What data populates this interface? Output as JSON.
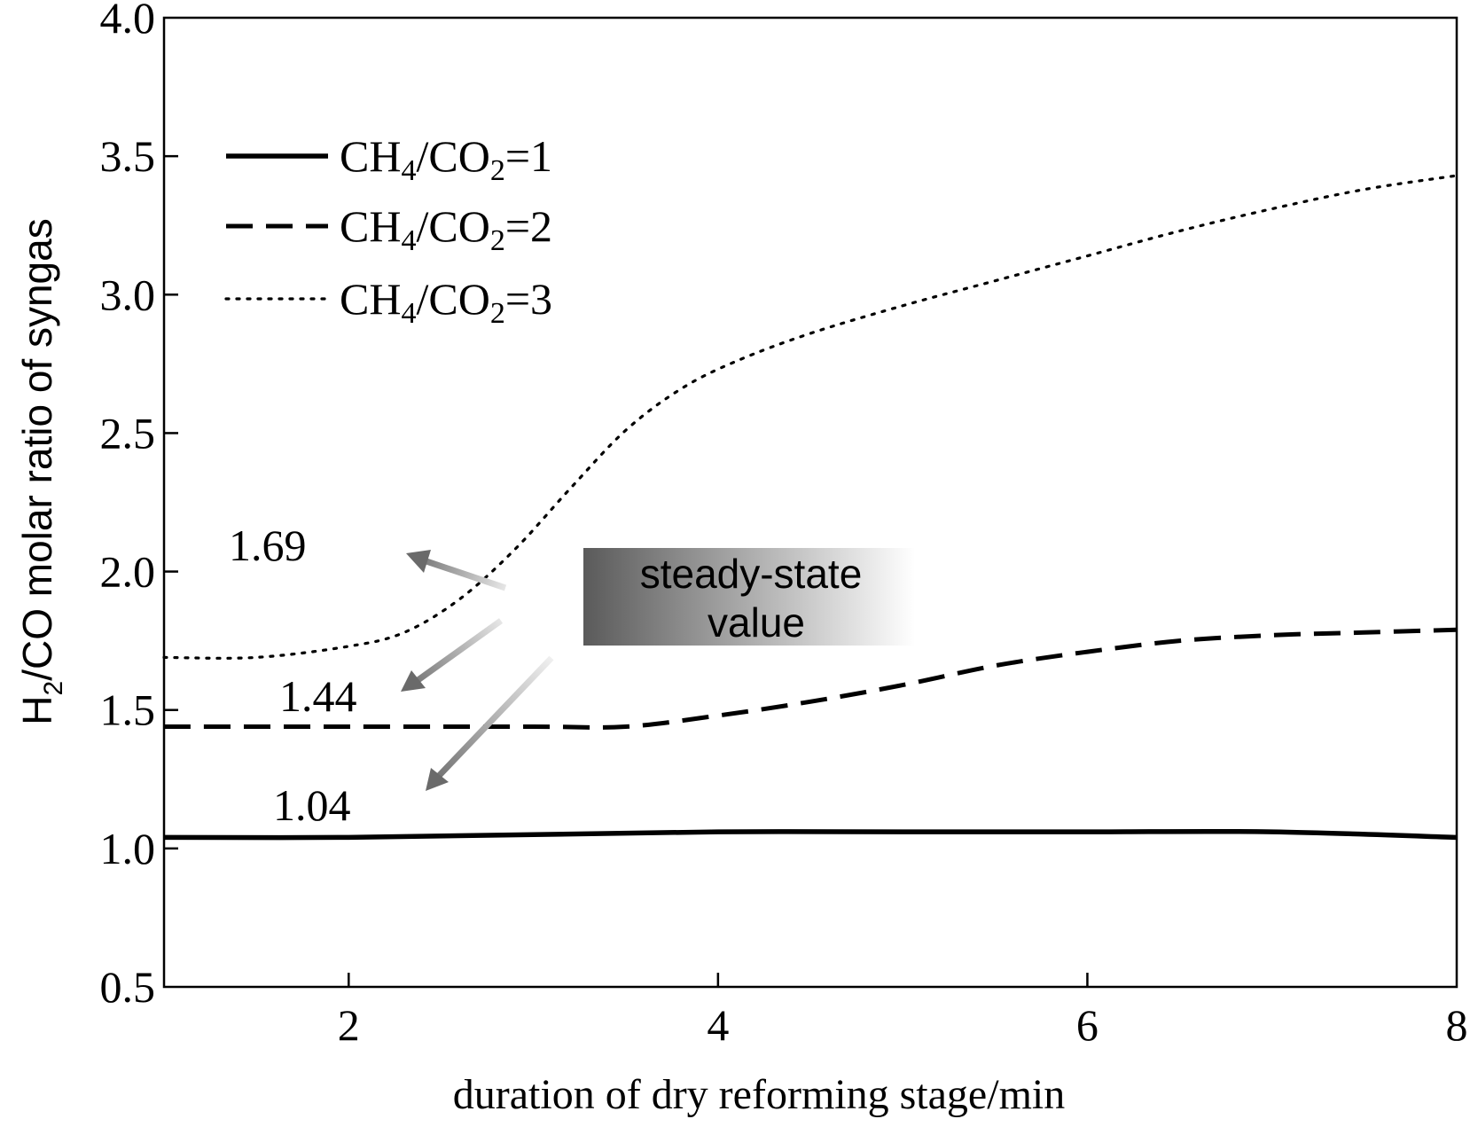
{
  "chart_data": {
    "type": "line",
    "xlabel": "duration of dry reforming stage/min",
    "ylabel": {
      "prefix": "H",
      "sub": "2",
      "suffix": "/CO molar ratio of syngas"
    },
    "xlim": [
      1,
      8
    ],
    "ylim": [
      0.5,
      4.0
    ],
    "xticks": [
      2,
      4,
      6,
      8
    ],
    "yticks": [
      0.5,
      1.0,
      1.5,
      2.0,
      2.5,
      3.0,
      3.5,
      4.0
    ],
    "ytick_labels": [
      "0.5",
      "1.0",
      "1.5",
      "2.0",
      "2.5",
      "3.0",
      "3.5",
      "4.0"
    ],
    "grid": false,
    "legend_position": "top-left",
    "series": [
      {
        "legend": {
          "base": "CH",
          "sub1": "4",
          "mid": "/CO",
          "sub2": "2",
          "tail": "=1"
        },
        "style": "solid",
        "x": [
          1.0,
          2.0,
          3.0,
          4.0,
          5.0,
          6.0,
          7.0,
          8.0
        ],
        "y": [
          1.04,
          1.04,
          1.05,
          1.06,
          1.06,
          1.06,
          1.06,
          1.04
        ]
      },
      {
        "legend": {
          "base": "CH",
          "sub1": "4",
          "mid": "/CO",
          "sub2": "2",
          "tail": "=2"
        },
        "style": "dashed",
        "x": [
          1.0,
          2.0,
          3.0,
          3.5,
          4.0,
          4.5,
          5.0,
          5.5,
          6.0,
          6.5,
          7.0,
          7.5,
          8.0
        ],
        "y": [
          1.44,
          1.44,
          1.44,
          1.44,
          1.48,
          1.53,
          1.59,
          1.66,
          1.71,
          1.75,
          1.77,
          1.78,
          1.79
        ]
      },
      {
        "legend": {
          "base": "CH",
          "sub1": "4",
          "mid": "/CO",
          "sub2": "2",
          "tail": "=3"
        },
        "style": "dotted",
        "x": [
          1.0,
          1.5,
          2.0,
          2.3,
          2.6,
          2.9,
          3.2,
          3.5,
          3.8,
          4.1,
          4.5,
          5.0,
          5.5,
          6.0,
          6.5,
          7.0,
          7.5,
          8.0
        ],
        "y": [
          1.69,
          1.69,
          1.73,
          1.78,
          1.9,
          2.08,
          2.3,
          2.51,
          2.66,
          2.76,
          2.86,
          2.96,
          3.05,
          3.14,
          3.23,
          3.31,
          3.38,
          3.43
        ]
      }
    ],
    "annotations": {
      "values": [
        "1.69",
        "1.44",
        "1.04"
      ],
      "box_line1": "steady-state",
      "box_line2": "value"
    }
  }
}
